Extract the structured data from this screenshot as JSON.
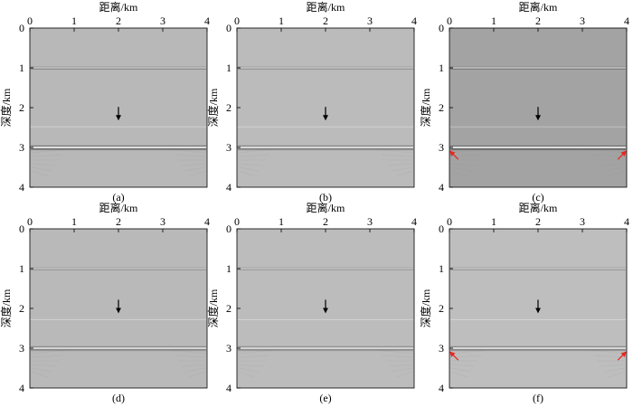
{
  "figure": {
    "axis_labels": {
      "x": "距离/km",
      "y": "深度/km"
    },
    "x_ticks": [
      "0",
      "1",
      "2",
      "3",
      "4"
    ],
    "y_ticks": [
      "0",
      "1",
      "2",
      "3",
      "4"
    ],
    "panels": [
      {
        "caption": "(a)",
        "background": "#b8b8b8",
        "reflector_strength": 1.0,
        "red_arrows": false
      },
      {
        "caption": "(b)",
        "background": "#bbbbbb",
        "reflector_strength": 0.8,
        "red_arrows": false
      },
      {
        "caption": "(c)",
        "background": "#a3a3a3",
        "reflector_strength": 1.0,
        "red_arrows": true
      },
      {
        "caption": "(d)",
        "background": "#b9b9b9",
        "reflector_strength": 0.7,
        "red_arrows": false
      },
      {
        "caption": "(e)",
        "background": "#bcbcbc",
        "reflector_strength": 0.65,
        "red_arrows": false
      },
      {
        "caption": "(f)",
        "background": "#bebebe",
        "reflector_strength": 0.75,
        "red_arrows": true
      }
    ],
    "colors": {
      "reflector_light": "#ffffff",
      "reflector_dark": "#202020",
      "arrow_black": "#000000",
      "arrow_red": "#e8261f"
    }
  },
  "chart_data": [
    {
      "type": "heatmap",
      "caption": "(a)",
      "xlabel": "距离/km",
      "ylabel": "深度/km",
      "xlim": [
        0,
        4
      ],
      "ylim": [
        0,
        4
      ],
      "reflectors_depth_km": [
        1,
        3
      ],
      "annotation_arrow": {
        "x": 2,
        "y": 2.3
      }
    },
    {
      "type": "heatmap",
      "caption": "(b)",
      "xlabel": "距离/km",
      "ylabel": "深度/km",
      "xlim": [
        0,
        4
      ],
      "ylim": [
        0,
        4
      ],
      "reflectors_depth_km": [
        1,
        3
      ],
      "annotation_arrow": {
        "x": 2,
        "y": 2.3
      }
    },
    {
      "type": "heatmap",
      "caption": "(c)",
      "xlabel": "距离/km",
      "ylabel": "深度/km",
      "xlim": [
        0,
        4
      ],
      "ylim": [
        0,
        4
      ],
      "reflectors_depth_km": [
        1,
        3
      ],
      "annotation_arrow": {
        "x": 2,
        "y": 2.3
      },
      "red_arrows": [
        {
          "x": 0.2,
          "y": 3.3
        },
        {
          "x": 3.8,
          "y": 3.3
        }
      ]
    },
    {
      "type": "heatmap",
      "caption": "(d)",
      "xlabel": "距离/km",
      "ylabel": "深度/km",
      "xlim": [
        0,
        4
      ],
      "ylim": [
        0,
        4
      ],
      "reflectors_depth_km": [
        1,
        3
      ],
      "annotation_arrow": {
        "x": 2,
        "y": 2.1
      }
    },
    {
      "type": "heatmap",
      "caption": "(e)",
      "xlabel": "距离/km",
      "ylabel": "深度/km",
      "xlim": [
        0,
        4
      ],
      "ylim": [
        0,
        4
      ],
      "reflectors_depth_km": [
        1,
        3
      ],
      "annotation_arrow": {
        "x": 2,
        "y": 2.1
      }
    },
    {
      "type": "heatmap",
      "caption": "(f)",
      "xlabel": "距离/km",
      "ylabel": "深度/km",
      "xlim": [
        0,
        4
      ],
      "ylim": [
        0,
        4
      ],
      "reflectors_depth_km": [
        1,
        3
      ],
      "annotation_arrow": {
        "x": 2,
        "y": 2.1
      },
      "red_arrows": [
        {
          "x": 0.2,
          "y": 3.3
        },
        {
          "x": 3.8,
          "y": 3.3
        }
      ]
    }
  ]
}
